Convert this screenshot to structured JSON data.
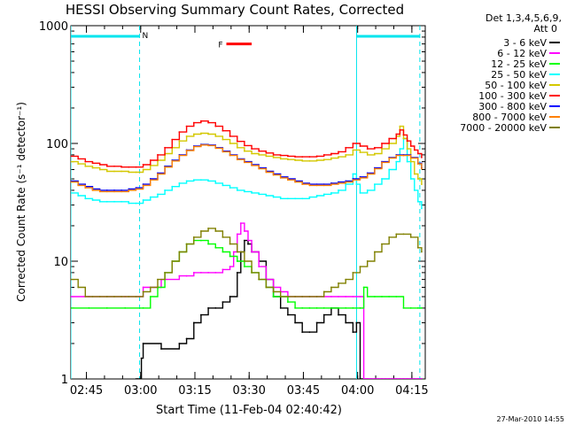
{
  "chart_data": {
    "type": "line",
    "title": "HESSI Observing Summary Count Rates, Corrected",
    "xlabel": "Start Time (11-Feb-04 02:40:42)",
    "ylabel": "Corrected Count Rate (s⁻¹ detector⁻¹)",
    "x_unit": "minutes after 02:40:42",
    "xlim": [
      0,
      98
    ],
    "ylim": [
      1,
      1000
    ],
    "yscale": "log",
    "x_ticks": [
      {
        "x": 4.3,
        "label": "02:45"
      },
      {
        "x": 19.3,
        "label": "03:00"
      },
      {
        "x": 34.3,
        "label": "03:15"
      },
      {
        "x": 49.3,
        "label": "03:30"
      },
      {
        "x": 64.3,
        "label": "03:45"
      },
      {
        "x": 79.3,
        "label": "04:00"
      },
      {
        "x": 94.3,
        "label": "04:15"
      }
    ],
    "y_ticks": [
      {
        "y": 1,
        "label": "1"
      },
      {
        "y": 10,
        "label": "10"
      },
      {
        "y": 100,
        "label": "100"
      },
      {
        "y": 1000,
        "label": "1000"
      }
    ],
    "legend": {
      "header": "Det 1,3,4,5,6,9,",
      "sub": "Att 0",
      "placement": "right"
    },
    "series": [
      {
        "name": "3 - 6 keV",
        "color": "#000000",
        "x": [
          18,
          18.5,
          19,
          19.5,
          20,
          25,
          30,
          32,
          34,
          36,
          38,
          40,
          42,
          44,
          46,
          47,
          48,
          49,
          50,
          52,
          54,
          56,
          58,
          60,
          62,
          64,
          66,
          68,
          70,
          72,
          74,
          76,
          78,
          79,
          80,
          81,
          82,
          83,
          84,
          85,
          86,
          87,
          88,
          89,
          90,
          91,
          92,
          93,
          94,
          95,
          96,
          97
        ],
        "y": [
          1,
          1,
          1,
          1.5,
          2,
          1.8,
          2,
          2.2,
          3,
          3.5,
          4,
          4,
          4.5,
          5,
          8,
          12,
          15,
          14,
          12,
          10,
          7,
          5,
          4,
          3.5,
          3,
          2.5,
          2.5,
          3,
          3.5,
          4,
          3.5,
          3,
          2.5,
          3,
          1,
          1,
          1,
          1,
          1,
          1,
          1,
          1,
          1,
          1,
          1,
          1,
          1,
          1,
          1,
          1,
          1,
          1
        ]
      },
      {
        "name": "6 - 12 keV",
        "color": "#ff00ff",
        "x": [
          0,
          5,
          10,
          15,
          19,
          20,
          25,
          30,
          32,
          34,
          36,
          38,
          40,
          42,
          44,
          45,
          46,
          47,
          48,
          49,
          50,
          52,
          54,
          56,
          58,
          60,
          62,
          64,
          66,
          68,
          70,
          72,
          74,
          76,
          78,
          80,
          81,
          82,
          83,
          84,
          85,
          86,
          87,
          88,
          89,
          90,
          91,
          92,
          93,
          94,
          95,
          96,
          97
        ],
        "y": [
          5,
          5,
          5,
          5,
          5,
          6,
          7,
          7.5,
          7.5,
          8,
          8,
          8,
          8,
          8.5,
          9,
          12,
          17,
          21,
          18,
          15,
          12,
          9,
          7,
          6,
          5.5,
          5,
          5,
          5,
          5,
          5,
          5,
          5,
          5,
          5,
          5,
          5,
          1,
          1,
          1,
          1,
          1,
          1,
          1,
          1,
          1,
          1,
          1,
          1,
          1,
          1,
          1,
          1,
          1
        ]
      },
      {
        "name": "12 - 25 keV",
        "color": "#00ff00",
        "x": [
          0,
          5,
          10,
          15,
          20,
          22,
          24,
          26,
          28,
          30,
          32,
          34,
          36,
          38,
          40,
          42,
          44,
          46,
          48,
          50,
          52,
          54,
          56,
          58,
          60,
          62,
          64,
          66,
          68,
          70,
          72,
          74,
          76,
          78,
          80,
          81,
          82,
          84,
          86,
          88,
          90,
          92,
          94,
          96,
          97
        ],
        "y": [
          4,
          4,
          4,
          4,
          4,
          5,
          6,
          8,
          10,
          12,
          14,
          15,
          15,
          14,
          13,
          12,
          11,
          10,
          9,
          8,
          7,
          6,
          5,
          5,
          4.5,
          4,
          4,
          4,
          4,
          4,
          4,
          4,
          4,
          4,
          4,
          6,
          5,
          5,
          5,
          5,
          5,
          4,
          4,
          4,
          4
        ]
      },
      {
        "name": "25 - 50 keV",
        "color": "#00ffff",
        "x": [
          0,
          2,
          4,
          6,
          8,
          10,
          12,
          14,
          16,
          18,
          20,
          22,
          24,
          26,
          28,
          30,
          32,
          34,
          36,
          38,
          40,
          42,
          44,
          46,
          48,
          50,
          52,
          54,
          56,
          58,
          60,
          62,
          64,
          66,
          68,
          70,
          72,
          74,
          76,
          78,
          79,
          80,
          82,
          84,
          86,
          88,
          90,
          91,
          92,
          93,
          94,
          95,
          96,
          97
        ],
        "y": [
          38,
          36,
          34,
          33,
          32,
          32,
          32,
          32,
          31,
          31,
          33,
          35,
          37,
          40,
          43,
          46,
          48,
          49,
          49,
          48,
          46,
          44,
          42,
          40,
          39,
          38,
          37,
          36,
          35,
          34,
          34,
          34,
          34,
          35,
          36,
          37,
          38,
          40,
          45,
          55,
          45,
          38,
          40,
          45,
          50,
          60,
          70,
          90,
          110,
          70,
          50,
          40,
          32,
          28
        ]
      },
      {
        "name": "50 - 100 keV",
        "color": "#d4c800",
        "x": [
          0,
          2,
          4,
          6,
          8,
          10,
          12,
          14,
          16,
          18,
          20,
          22,
          24,
          26,
          28,
          30,
          32,
          34,
          36,
          38,
          40,
          42,
          44,
          46,
          48,
          50,
          52,
          54,
          56,
          58,
          60,
          62,
          64,
          66,
          68,
          70,
          72,
          74,
          76,
          78,
          80,
          82,
          84,
          86,
          88,
          90,
          91,
          92,
          93,
          94,
          95,
          96,
          97
        ],
        "y": [
          70,
          67,
          64,
          62,
          60,
          58,
          58,
          58,
          57,
          57,
          60,
          65,
          72,
          82,
          92,
          105,
          115,
          120,
          122,
          120,
          115,
          108,
          100,
          92,
          86,
          82,
          80,
          78,
          76,
          74,
          73,
          72,
          71,
          71,
          72,
          73,
          75,
          77,
          80,
          88,
          84,
          80,
          82,
          90,
          100,
          115,
          140,
          110,
          90,
          70,
          55,
          50,
          45
        ]
      },
      {
        "name": "100 - 300 keV",
        "color": "#ff0000",
        "x": [
          0,
          2,
          4,
          6,
          8,
          10,
          12,
          14,
          16,
          18,
          20,
          22,
          24,
          26,
          28,
          30,
          32,
          34,
          36,
          38,
          40,
          42,
          44,
          46,
          48,
          50,
          52,
          54,
          56,
          58,
          60,
          62,
          64,
          66,
          68,
          70,
          72,
          74,
          76,
          78,
          80,
          82,
          84,
          86,
          88,
          90,
          91,
          92,
          93,
          94,
          95,
          96,
          97
        ],
        "y": [
          78,
          74,
          70,
          68,
          66,
          64,
          64,
          63,
          63,
          63,
          66,
          72,
          80,
          92,
          108,
          125,
          140,
          150,
          155,
          150,
          140,
          128,
          115,
          104,
          96,
          90,
          86,
          83,
          80,
          79,
          78,
          77,
          77,
          77,
          78,
          80,
          82,
          85,
          92,
          100,
          95,
          90,
          92,
          100,
          110,
          120,
          130,
          118,
          105,
          95,
          88,
          82,
          76
        ]
      },
      {
        "name": "300 - 800 keV",
        "color": "#0000ff",
        "x": [
          0,
          2,
          4,
          6,
          8,
          10,
          12,
          14,
          16,
          18,
          20,
          22,
          24,
          26,
          28,
          30,
          32,
          34,
          36,
          38,
          40,
          42,
          44,
          46,
          48,
          50,
          52,
          54,
          56,
          58,
          60,
          62,
          64,
          66,
          68,
          70,
          72,
          74,
          76,
          78,
          80,
          82,
          84,
          86,
          88,
          90,
          92,
          94,
          96,
          97
        ],
        "y": [
          48,
          45,
          43,
          41,
          40,
          40,
          40,
          40,
          41,
          42,
          45,
          50,
          56,
          64,
          72,
          80,
          88,
          95,
          98,
          97,
          92,
          86,
          80,
          74,
          70,
          66,
          62,
          58,
          55,
          52,
          50,
          48,
          46,
          45,
          45,
          45,
          46,
          47,
          48,
          50,
          52,
          56,
          62,
          70,
          76,
          80,
          80,
          76,
          68,
          62
        ]
      },
      {
        "name": "800 - 7000 keV",
        "color": "#ff8000",
        "x": [
          0,
          2,
          4,
          6,
          8,
          10,
          12,
          14,
          16,
          18,
          20,
          22,
          24,
          26,
          28,
          30,
          32,
          34,
          36,
          38,
          40,
          42,
          44,
          46,
          48,
          50,
          52,
          54,
          56,
          58,
          60,
          62,
          64,
          66,
          68,
          70,
          72,
          74,
          76,
          78,
          80,
          82,
          84,
          86,
          88,
          90,
          92,
          94,
          96,
          97
        ],
        "y": [
          47,
          44,
          42,
          40,
          39,
          39,
          39,
          39,
          40,
          41,
          44,
          49,
          55,
          63,
          71,
          79,
          87,
          94,
          97,
          96,
          91,
          85,
          79,
          73,
          69,
          65,
          61,
          57,
          54,
          51,
          49,
          47,
          45,
          44,
          44,
          44,
          45,
          46,
          47,
          49,
          51,
          55,
          61,
          69,
          75,
          79,
          79,
          75,
          67,
          61
        ]
      },
      {
        "name": "7000 - 20000 keV",
        "color": "#808000",
        "x": [
          0,
          2,
          4,
          6,
          8,
          10,
          12,
          14,
          16,
          18,
          20,
          22,
          24,
          26,
          28,
          30,
          32,
          34,
          36,
          38,
          40,
          42,
          44,
          46,
          48,
          50,
          52,
          54,
          56,
          58,
          60,
          62,
          64,
          66,
          68,
          70,
          72,
          74,
          76,
          78,
          80,
          82,
          84,
          86,
          88,
          90,
          92,
          94,
          96,
          97
        ],
        "y": [
          7,
          6,
          5,
          5,
          5,
          5,
          5,
          5,
          5,
          5,
          5.5,
          6,
          7,
          8,
          10,
          12,
          14,
          16,
          18,
          19,
          18,
          16,
          14,
          12,
          10,
          8,
          7,
          6,
          5.5,
          5,
          5,
          5,
          5,
          5,
          5,
          5.5,
          6,
          6.5,
          7,
          8,
          9,
          10,
          12,
          14,
          16,
          17,
          17,
          16,
          13,
          12
        ]
      }
    ],
    "time_markers": {
      "color": "#00e5ee",
      "night_bars": [
        {
          "x_start": 0,
          "x_end": 19,
          "label": "N"
        },
        {
          "x_start": 79,
          "x_end": 96.5,
          "label": ""
        }
      ],
      "vlines_dashed": [
        19,
        96.5
      ],
      "vlines_solid": [
        0,
        79
      ]
    },
    "flare_marker": {
      "label": "F",
      "color": "#ff0000",
      "x_start": 43,
      "x_end": 50,
      "y": 700
    }
  },
  "footer": {
    "timestamp": "27-Mar-2010 14:55"
  }
}
